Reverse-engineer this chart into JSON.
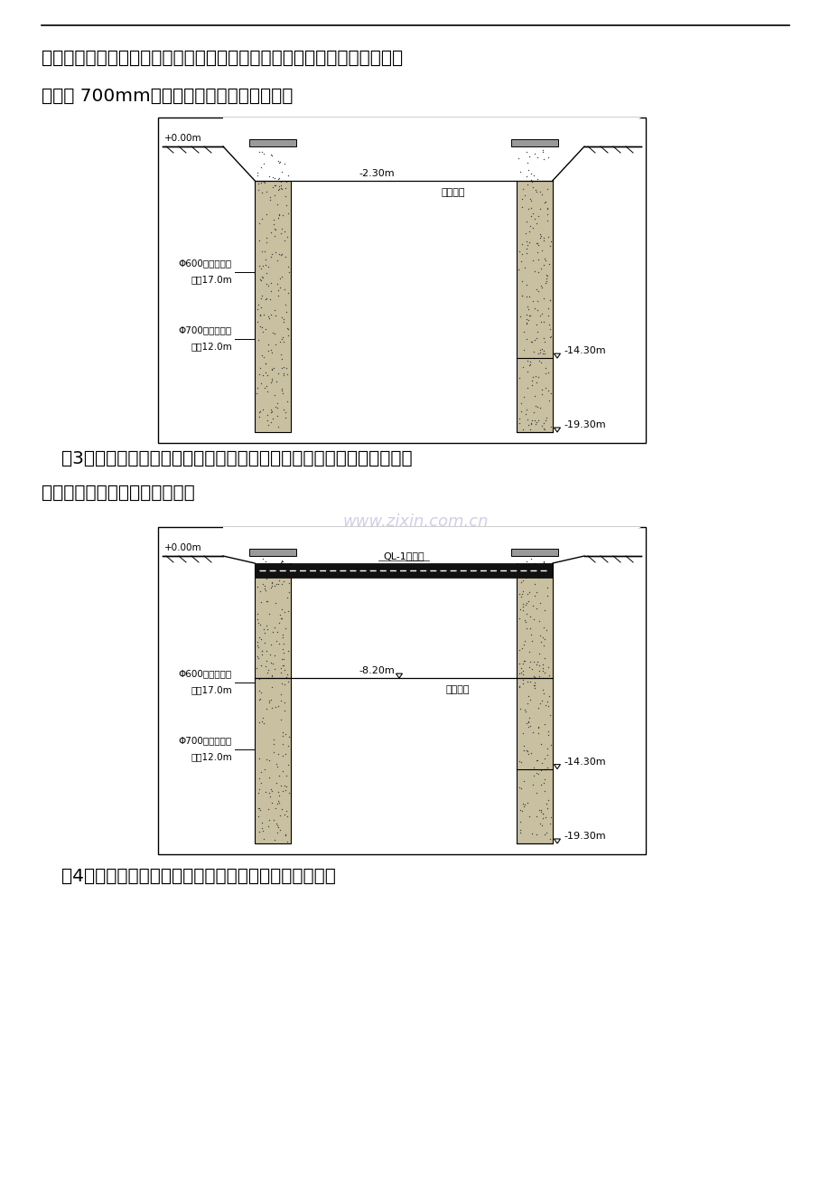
{
  "page_bg": "#ffffff",
  "top_line": true,
  "para1": "确保钻孔桩的质量。为保护现场环境，拟采用钢板箱作为沉淀池。高压旋喷",
  "para2": "直径为 700mm，故选用两重管法进行施工。",
  "para3_prefix": "（3）围护结构钻孔桩施工完成后，开始降水及封底施工。围护结构施工",
  "para3_suffix": "完成后，即可开始顶圈梁施工。",
  "para4": "（4）土方开挖至设计高程后，及时施作垫层和底板砼。",
  "watermark": "www.zixin.com.cn",
  "diag1": {
    "label_top": "+0.00m",
    "label_mid": "-2.30m",
    "label_mid_text": "土体顶面",
    "label_bot1": "-14.30m",
    "label_bot2": "-19.30m",
    "left_label1": "Φ600钻孔灌注桩",
    "left_label1b": "桩长17.0m",
    "left_label2": "Φ700高压旋喷桩",
    "left_label2b": "桩长12.0m"
  },
  "diag2": {
    "label_top": "+0.00m",
    "label_mid": "-8.20m",
    "label_mid_text": "土体顶面",
    "label_bot1": "-14.30m",
    "label_bot2": "-19.30m",
    "label_beam": "QL-1顶圈梁",
    "left_label1": "Φ600钻孔灌注桩",
    "left_label1b": "桩长17.0m",
    "left_label2": "Φ700高压旋喷桩",
    "left_label2b": "桩长12.0m"
  },
  "text_color": "#000000",
  "line_color": "#000000",
  "pile_fill": "#c8c0a0",
  "box_fill": "#ffffff"
}
